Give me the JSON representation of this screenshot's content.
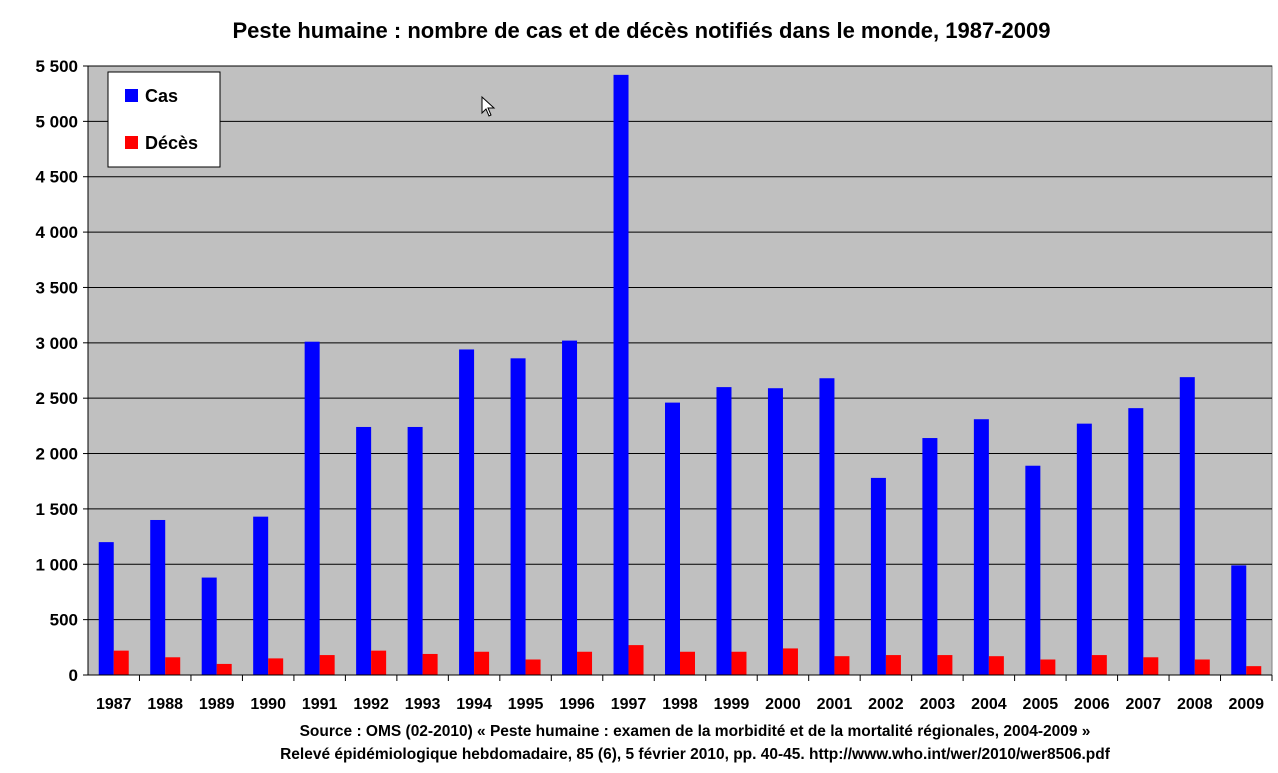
{
  "chart_data": {
    "type": "bar",
    "title": "Peste humaine : nombre de cas et de décès notifiés dans le monde, 1987-2009",
    "xlabel": "",
    "ylabel": "",
    "ylim": [
      0,
      5500
    ],
    "y_ticks": [
      "0",
      "500",
      "1 000",
      "1 500",
      "2 000",
      "2 500",
      "3 000",
      "3 500",
      "4 000",
      "4 500",
      "5 000",
      "5 500"
    ],
    "categories": [
      "1987",
      "1988",
      "1989",
      "1990",
      "1991",
      "1992",
      "1993",
      "1994",
      "1995",
      "1996",
      "1997",
      "1998",
      "1999",
      "2000",
      "2001",
      "2002",
      "2003",
      "2004",
      "2005",
      "2006",
      "2007",
      "2008",
      "2009"
    ],
    "series": [
      {
        "name": "Cas",
        "color": "#0000ff",
        "values": [
          1200,
          1400,
          880,
          1430,
          3010,
          2240,
          2240,
          2940,
          2860,
          3020,
          5420,
          2460,
          2600,
          2590,
          2680,
          1780,
          2140,
          2310,
          1890,
          2270,
          2410,
          2690,
          990
        ]
      },
      {
        "name": "Décès",
        "color": "#ff0000",
        "values": [
          220,
          160,
          100,
          150,
          180,
          220,
          190,
          210,
          140,
          210,
          270,
          210,
          210,
          240,
          170,
          180,
          180,
          170,
          140,
          180,
          160,
          140,
          80
        ]
      }
    ],
    "grid": true,
    "plot_background": "#c0c0c0",
    "legend_position": "top-left"
  },
  "source": {
    "line1": "Source : OMS (02-2010) « Peste humaine : examen de la morbidité et de la mortalité régionales, 2004-2009 »",
    "line2": "Relevé épidémiologique hebdomadaire, 85 (6), 5 février 2010, pp. 40-45. http://www.who.int/wer/2010/wer8506.pdf"
  }
}
